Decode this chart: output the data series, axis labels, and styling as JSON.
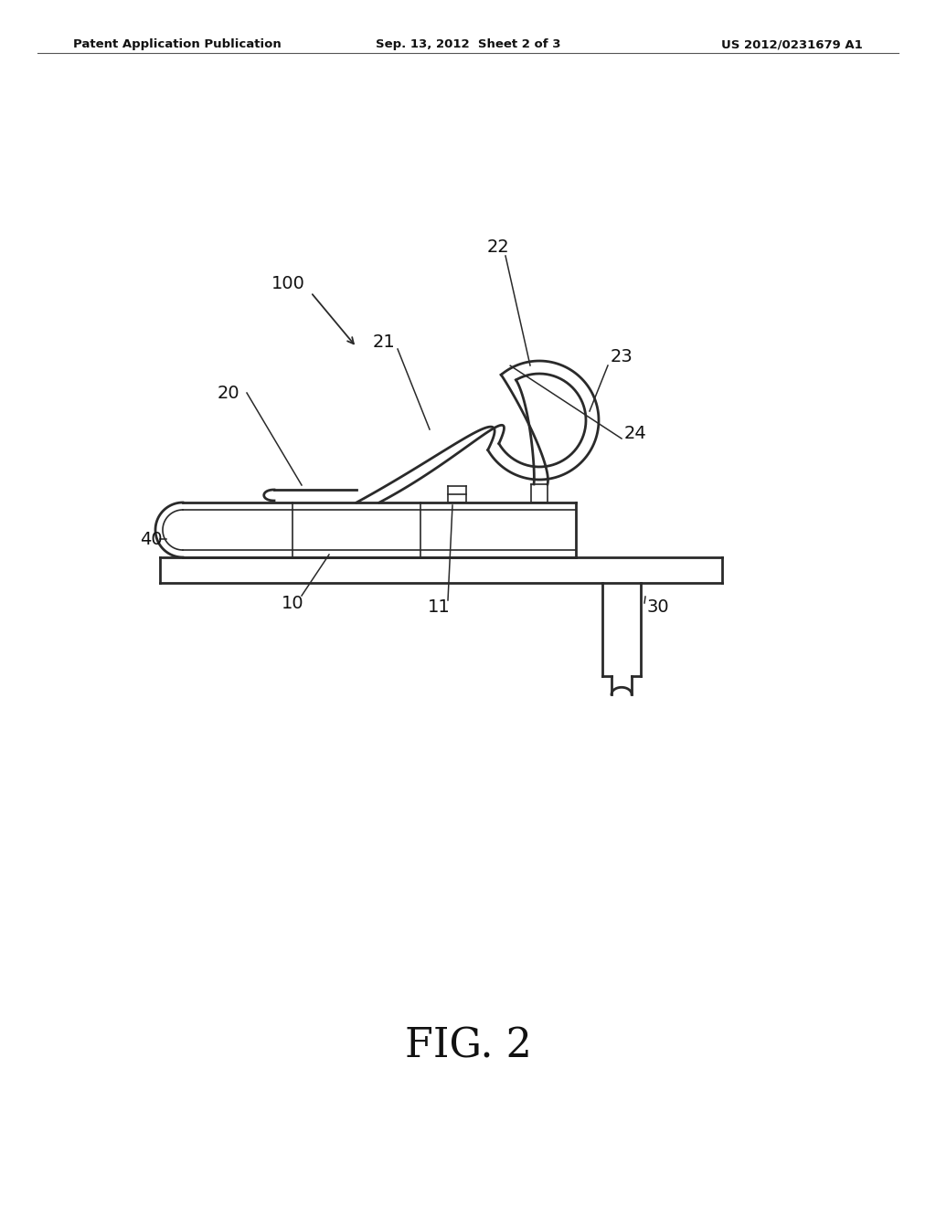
{
  "bg_color": "#ffffff",
  "line_color": "#2a2a2a",
  "header_left": "Patent Application Publication",
  "header_center": "Sep. 13, 2012  Sheet 2 of 3",
  "header_right": "US 2012/0231679 A1",
  "fig_label": "FIG. 2"
}
